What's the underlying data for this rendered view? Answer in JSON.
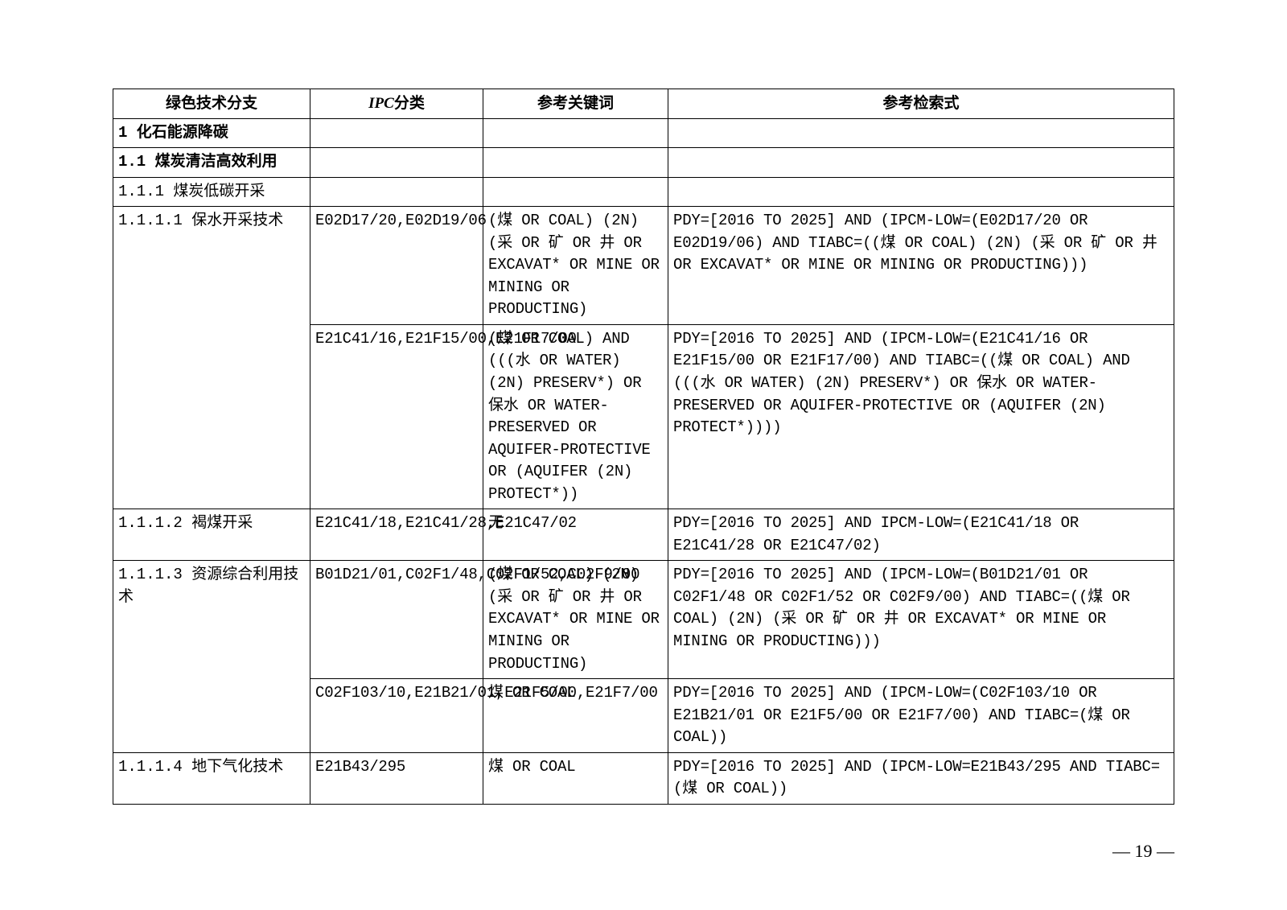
{
  "table": {
    "headers": {
      "col1": "绿色技术分支",
      "col2_ipc": "IPC",
      "col2_suffix": "分类",
      "col3": "参考关键词",
      "col4": "参考检索式"
    },
    "rows": [
      {
        "c1": "1 化石能源降碳",
        "c2": "",
        "c3": "",
        "c4": "",
        "bold": true
      },
      {
        "c1": "1.1 煤炭清洁高效利用",
        "c2": "",
        "c3": "",
        "c4": "",
        "bold": true
      },
      {
        "c1": "1.1.1 煤炭低碳开采",
        "c2": "",
        "c3": "",
        "c4": ""
      },
      {
        "c1": "1.1.1.1 保水开采技术",
        "c2": "E02D17/20,E02D19/06",
        "c3": "(煤 OR COAL) (2N) (采 OR 矿 OR 井 OR EXCAVAT* OR MINE OR MINING OR PRODUCTING)",
        "c4": "PDY=[2016 TO 2025] AND (IPCM-LOW=(E02D17/20 OR E02D19/06)  AND TIABC=((煤 OR COAL) (2N) (采 OR 矿 OR 井 OR EXCAVAT* OR MINE OR MINING OR PRODUCTING)))"
      },
      {
        "c1": "",
        "c2": "E21C41/16,E21F15/00,E21F17/00",
        "c3": "(煤 OR COAL) AND (((水 OR WATER) (2N) PRESERV*) OR 保水 OR WATER-PRESERVED OR AQUIFER-PROTECTIVE OR (AQUIFER (2N) PROTECT*))",
        "c4": "PDY=[2016 TO 2025] AND (IPCM-LOW=(E21C41/16 OR E21F15/00 OR E21F17/00)  AND TIABC=((煤 OR COAL) AND (((水 OR WATER) (2N) PRESERV*) OR 保水 OR WATER-PRESERVED OR AQUIFER-PROTECTIVE OR (AQUIFER (2N) PROTECT*))))",
        "merge_c1": true
      },
      {
        "c1": "1.1.1.2 褐煤开采",
        "c2": "E21C41/18,E21C41/28,E21C47/02",
        "c3": "无",
        "c4": "PDY=[2016 TO 2025] AND IPCM-LOW=(E21C41/18 OR E21C41/28 OR E21C47/02)"
      },
      {
        "c1": "1.1.1.3 资源综合利用技术",
        "c2": "B01D21/01,C02F1/48,C02F1/52,C02F9/00",
        "c3": "(煤 OR COAL) (2N) (采 OR 矿 OR 井 OR EXCAVAT* OR MINE OR MINING OR PRODUCTING)",
        "c4": "PDY=[2016 TO 2025] AND (IPCM-LOW=(B01D21/01 OR C02F1/48 OR C02F1/52 OR C02F9/00)  AND TIABC=((煤 OR COAL) (2N) (采 OR 矿 OR 井 OR EXCAVAT* OR MINE OR MINING OR PRODUCTING)))"
      },
      {
        "c1": "",
        "c2": "C02F103/10,E21B21/01,E21F5/00,E21F7/00",
        "c3": "煤 OR COAL",
        "c4": "PDY=[2016 TO 2025] AND (IPCM-LOW=(C02F103/10 OR E21B21/01 OR E21F5/00 OR E21F7/00)  AND TIABC=(煤 OR COAL))",
        "merge_c1": true
      },
      {
        "c1": "1.1.1.4 地下气化技术",
        "c2": "E21B43/295",
        "c3": "煤 OR COAL",
        "c4": "PDY=[2016 TO 2025] AND (IPCM-LOW=E21B43/295 AND TIABC=(煤 OR COAL))"
      }
    ]
  },
  "page_number": "— 19 —"
}
